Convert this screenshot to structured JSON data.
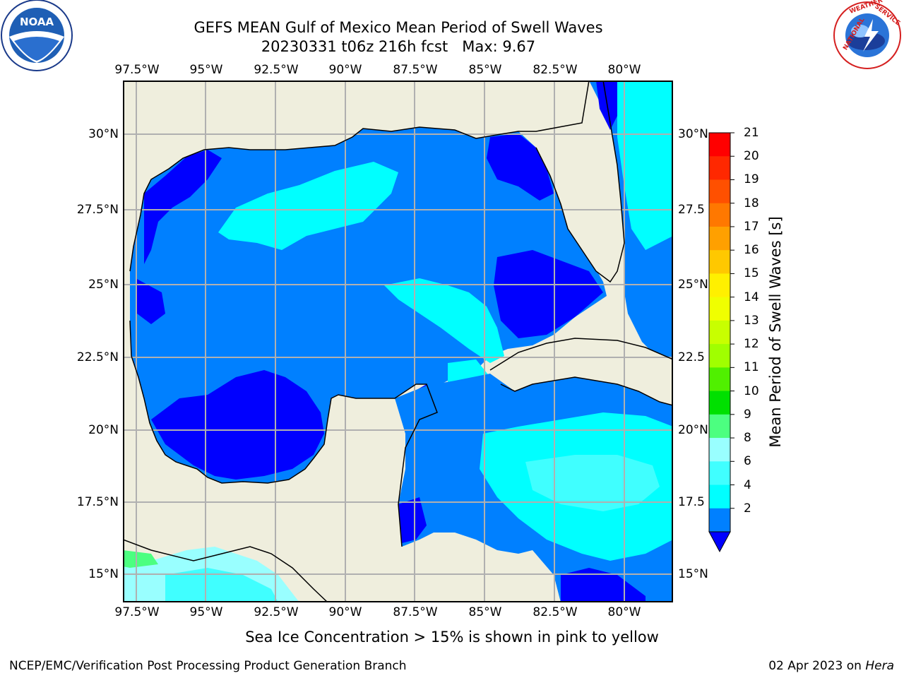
{
  "title": {
    "line1": "GEFS MEAN Gulf of Mexico Mean Period of Swell Waves",
    "line2": "20230331 t06z 216h fcst   Max: 9.67"
  },
  "logos": {
    "left": "NOAA",
    "right_text": "NATIONAL WEATHER SERVICE"
  },
  "map": {
    "lon_ticks": [
      "97.5°W",
      "95°W",
      "92.5°W",
      "90°W",
      "87.5°W",
      "85°W",
      "82.5°W",
      "80°W"
    ],
    "lat_ticks_left": [
      "30°N",
      "27.5°N",
      "25°N",
      "22.5°N",
      "20°N",
      "17.5°N",
      "15°N"
    ],
    "lat_ticks_right": [
      "30°N",
      "27.5",
      "25°N",
      "22.5",
      "20°N",
      "17.5",
      "15°N"
    ],
    "colors": {
      "land": "#efeedd",
      "ocean_2_4": "#0080ff",
      "ocean_lt2": "#0000ff",
      "ocean_4_6": "#00ffff",
      "ocean_6_8": "#40ffff",
      "ocean_8_9": "#99ffff",
      "ocean_9_10": "#4cff80",
      "grid": "#b0b0b0"
    }
  },
  "colorbar": {
    "title": "Mean Period of Swell Waves [s]",
    "levels": [
      "21",
      "20",
      "19",
      "18",
      "17",
      "16",
      "15",
      "14",
      "13",
      "12",
      "11",
      "10",
      "9",
      "8",
      "6",
      "4",
      "2"
    ],
    "colors": [
      "#ff0000",
      "#ff2800",
      "#ff5000",
      "#ff7800",
      "#ffa000",
      "#ffc800",
      "#fff000",
      "#f0ff00",
      "#c8ff00",
      "#a0ff00",
      "#50f000",
      "#00e000",
      "#4cff80",
      "#99ffff",
      "#40ffff",
      "#00ffff",
      "#0080ff"
    ],
    "under_color": "#0000ff"
  },
  "note": "Sea Ice Concentration > 15% is shown in pink to yellow",
  "footer": {
    "left": "NCEP/EMC/Verification Post Processing Product Generation Branch",
    "date": "02 Apr 2023 on ",
    "machine": "Hera"
  }
}
